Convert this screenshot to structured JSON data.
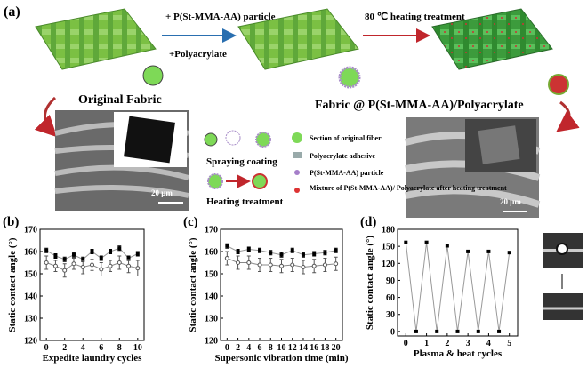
{
  "diagram": {
    "panel": "(a)",
    "step1_top": "+ P(St-MMA-AA) particle",
    "step1_bottom": "+Polyacrylate",
    "step2": "80 ℃ heating treatment",
    "original": "Original Fabric",
    "coated": "Fabric @ P(St-MMA-AA)/Polyacrylate",
    "scale_left": "20 μm",
    "scale_right": "20 μm",
    "spraying": "Spraying coating",
    "heating": "Heating treatment",
    "legend": [
      "Section of original fiber",
      "Polyacrylate adhesive",
      "P(St-MMA-AA) particle",
      "Mixture of P(St-MMA-AA)/ Polyacrylate after heating treatment"
    ]
  },
  "chart_data": [
    {
      "type": "line",
      "panel": "(b)",
      "xlabel": "Expedite laundry cycles",
      "ylabel": "Static contact angle (°)",
      "x": [
        0,
        1,
        2,
        3,
        4,
        5,
        6,
        7,
        8,
        9,
        10
      ],
      "xlim": [
        -0.7,
        10.7
      ],
      "xticks": [
        0,
        2,
        4,
        6,
        8,
        10
      ],
      "ylim": [
        120,
        170
      ],
      "yticks": [
        120,
        130,
        140,
        150,
        160,
        170
      ],
      "series": [
        {
          "color": "#000000",
          "marker": "square",
          "values": [
            160.5,
            158,
            156.5,
            158.5,
            156.5,
            160,
            157,
            160,
            161.5,
            157,
            159
          ],
          "errors": [
            1,
            1,
            1,
            1,
            1,
            1,
            1,
            1,
            1,
            1,
            1
          ]
        },
        {
          "color": "#555555",
          "marker": "circle",
          "values": [
            155,
            153.5,
            151.5,
            154.5,
            153,
            154,
            152,
            153.5,
            155,
            153.5,
            152.5
          ],
          "errors": [
            3,
            2.5,
            3,
            2.5,
            3,
            2.5,
            3,
            2.5,
            3,
            3,
            3.5
          ]
        }
      ]
    },
    {
      "type": "line",
      "panel": "(c)",
      "xlabel": "Supersonic vibration time (min)",
      "ylabel": "Static contact angle (°)",
      "x": [
        0,
        2,
        4,
        6,
        8,
        10,
        12,
        14,
        16,
        18,
        20
      ],
      "xlim": [
        -1.2,
        21.2
      ],
      "xticks": [
        0,
        2,
        4,
        6,
        8,
        10,
        12,
        14,
        16,
        18,
        20
      ],
      "ylim": [
        120,
        170
      ],
      "yticks": [
        120,
        130,
        140,
        150,
        160,
        170
      ],
      "series": [
        {
          "color": "#000000",
          "marker": "square",
          "values": [
            162.5,
            160,
            161,
            160.5,
            159.5,
            158.5,
            160.5,
            158.5,
            159,
            159.5,
            160.5
          ],
          "errors": [
            1,
            1,
            1,
            1,
            1,
            1,
            1,
            1,
            1,
            1,
            1
          ]
        },
        {
          "color": "#555555",
          "marker": "circle",
          "values": [
            157,
            155,
            155,
            154,
            154,
            153.5,
            154,
            153,
            153.5,
            154,
            154.5
          ],
          "errors": [
            3,
            3,
            3,
            3,
            3,
            3,
            3,
            3,
            3,
            3,
            3
          ]
        }
      ]
    },
    {
      "type": "line",
      "panel": "(d)",
      "xlabel": "Plasma & heat cycles",
      "ylabel": "Static contact angle (°)",
      "x": [
        0,
        0.5,
        1,
        1.5,
        2,
        2.5,
        3,
        3.5,
        4,
        4.5,
        5
      ],
      "xlim": [
        -0.4,
        5.4
      ],
      "xticks": [
        0,
        1,
        2,
        3,
        4,
        5
      ],
      "ylim": [
        -8,
        180
      ],
      "yticks": [
        0,
        30,
        60,
        90,
        120,
        150,
        180
      ],
      "series": [
        {
          "color": "#000000",
          "marker": "square",
          "values": [
            157,
            0,
            157,
            0,
            151,
            0,
            141,
            0,
            141,
            0,
            139
          ]
        }
      ]
    }
  ]
}
